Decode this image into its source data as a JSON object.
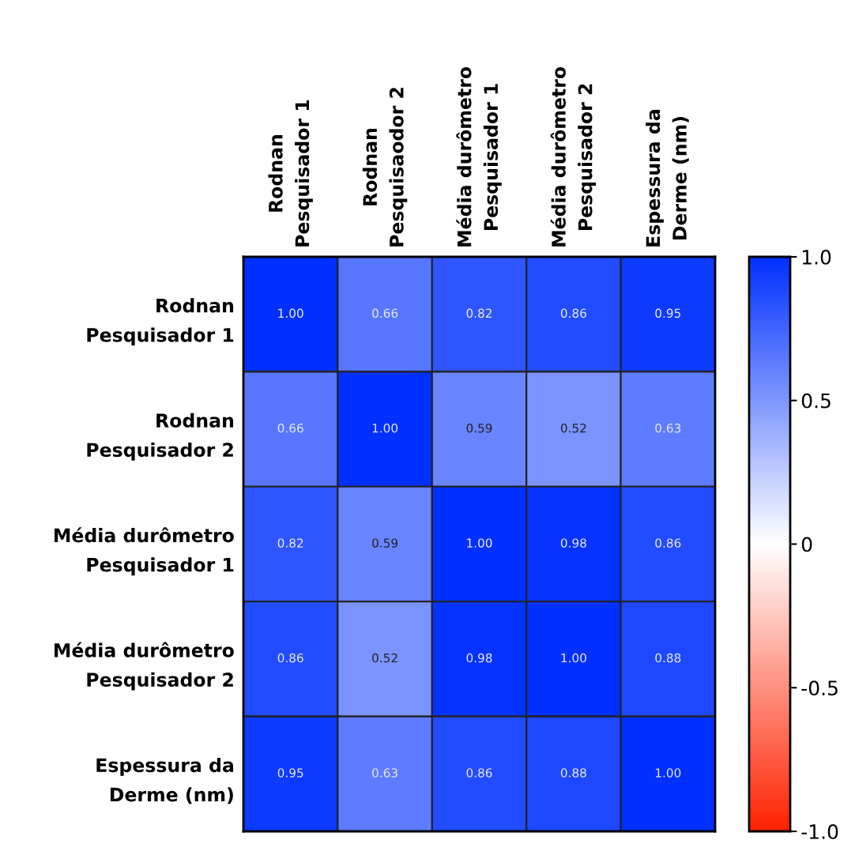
{
  "chart_data": {
    "type": "heatmap",
    "categories": [
      "Rodnan\nPesquisador 1",
      "Rodnan\nPesquisaodor 2",
      "Média durômetro\nPesquisador 1",
      "Média durômetro\nPesquisador 2",
      "Espessura da\nDerme (nm)"
    ],
    "y_categories": [
      "Rodnan\nPesquisador 1",
      "Rodnan\nPesquisador 2",
      "Média durômetro\nPesquisador 1",
      "Média durômetro\nPesquisador 2",
      "Espessura da\nDerme (nm)"
    ],
    "cells": [
      [
        1.0,
        0.66,
        0.82,
        0.86,
        0.95
      ],
      [
        0.66,
        1.0,
        0.59,
        0.52,
        0.63
      ],
      [
        0.82,
        0.59,
        1.0,
        0.98,
        0.86
      ],
      [
        0.86,
        0.52,
        0.98,
        1.0,
        0.88
      ],
      [
        0.95,
        0.63,
        0.86,
        0.88,
        1.0
      ]
    ],
    "cell_labels": [
      [
        "1.00",
        "0.66",
        "0.82",
        "0.86",
        "0.95"
      ],
      [
        "0.66",
        "1.00",
        "0.59",
        "0.52",
        "0.63"
      ],
      [
        "0.82",
        "0.59",
        "1.00",
        "0.98",
        "0.86"
      ],
      [
        "0.86",
        "0.52",
        "0.98",
        "1.00",
        "0.88"
      ],
      [
        "0.95",
        "0.63",
        "0.86",
        "0.88",
        "1.00"
      ]
    ],
    "colors": [
      "#ff2200",
      "#ffffff",
      "#0030ff"
    ],
    "clim": [
      -1,
      1
    ],
    "cticks": [
      {
        "value": 1,
        "label": "1.0"
      },
      0.5,
      0,
      -0.5,
      {
        "value": -1,
        "label": "-1.0"
      }
    ]
  }
}
